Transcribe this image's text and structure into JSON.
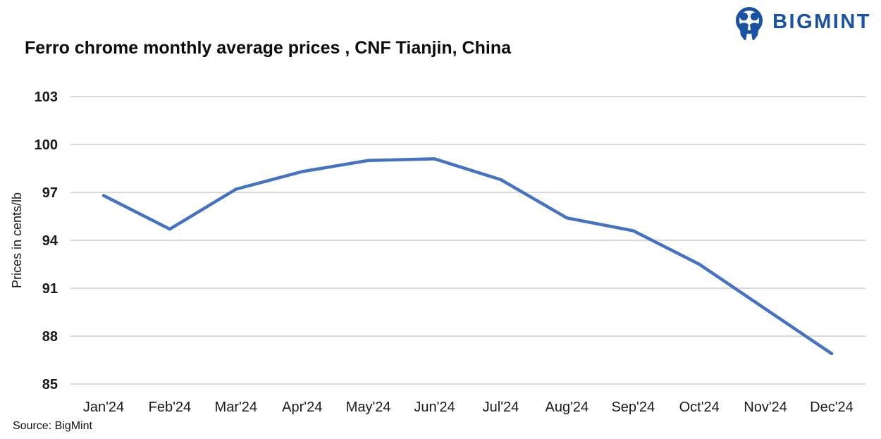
{
  "header": {
    "title": "Ferro chrome monthly average prices , CNF Tianjin, China",
    "logo_text": "BIGMINT",
    "logo_icon": "bigmint-people-icon"
  },
  "source": "Source: BigMint",
  "colors": {
    "line": "#4472C4",
    "gridline": "#D9D9D9",
    "logo_blue": "#1952A3",
    "label_text": "#1a1a1a"
  },
  "chart_data": {
    "type": "line",
    "title": "Ferro chrome monthly average prices , CNF Tianjin, China",
    "xlabel": "",
    "ylabel": "Prices in cents/lb",
    "categories": [
      "Jan'24",
      "Feb'24",
      "Mar'24",
      "Apr'24",
      "May'24",
      "Jun'24",
      "Jul'24",
      "Aug'24",
      "Sep'24",
      "Oct'24",
      "Nov'24",
      "Dec'24"
    ],
    "values": [
      96.8,
      94.7,
      97.2,
      98.3,
      99.0,
      99.1,
      97.8,
      95.4,
      94.6,
      92.5,
      89.7,
      86.9
    ],
    "series_name": "Ferro chrome monthly average price, CNF Tianjin",
    "ylim": [
      85,
      103
    ],
    "yticks": [
      85,
      88,
      91,
      94,
      97,
      100,
      103
    ],
    "grid": true,
    "legend": "none",
    "line_color": "#4472C4"
  }
}
